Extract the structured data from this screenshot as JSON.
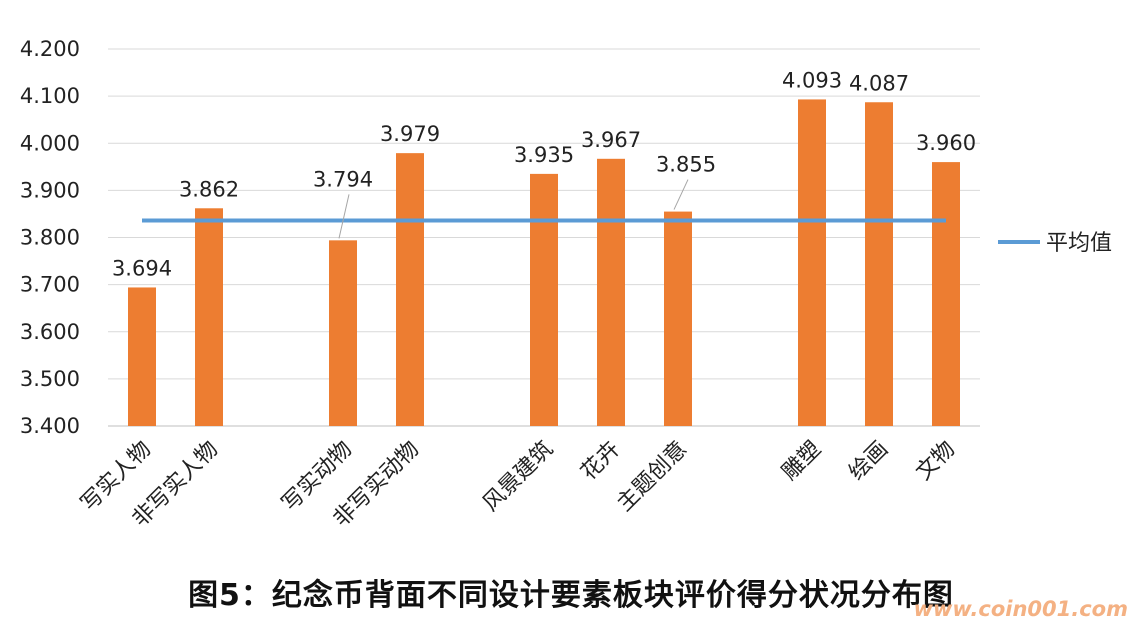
{
  "chart_data": {
    "type": "bar",
    "categories": [
      "写实人物",
      "非写实人物",
      "写实动物",
      "非写实动物",
      "风景建筑",
      "花卉",
      "主题创意",
      "雕塑",
      "绘画",
      "文物"
    ],
    "values": [
      3.694,
      3.862,
      3.794,
      3.979,
      3.935,
      3.967,
      3.855,
      4.093,
      4.087,
      3.96
    ],
    "data_labels": [
      "3.694",
      "3.862",
      "3.794",
      "3.979",
      "3.935",
      "3.967",
      "3.855",
      "4.093",
      "4.087",
      "3.960"
    ],
    "y_ticks": [
      "3.400",
      "3.500",
      "3.600",
      "3.700",
      "3.800",
      "3.900",
      "4.000",
      "4.100",
      "4.200"
    ],
    "ylim": [
      3.4,
      4.2
    ],
    "average": {
      "name": "平均值",
      "value": 3.836
    },
    "title": "",
    "xlabel": "",
    "ylabel": "",
    "grid": true,
    "legend_position": "right",
    "colors": {
      "bar": "#ed7d31",
      "average": "#5b9bd5",
      "grid": "#d9d9d9",
      "axis": "#bfbfbf"
    }
  },
  "caption": "图5：纪念币背面不同设计要素板块评价得分状况分布图",
  "watermark": "www.coin001.com"
}
